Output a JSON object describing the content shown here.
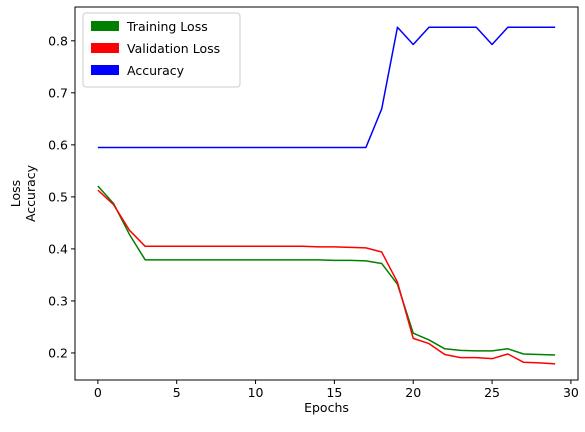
{
  "chart_data": {
    "type": "line",
    "title": "",
    "xlabel": "Epochs",
    "ylabel_lines": [
      "Loss",
      "Accuracy"
    ],
    "xlim": [
      -1.45,
      30.45
    ],
    "ylim": [
      0.148,
      0.865
    ],
    "xticks": [
      0,
      5,
      10,
      15,
      20,
      25,
      30
    ],
    "yticks": [
      0.2,
      0.3,
      0.4,
      0.5,
      0.6,
      0.7,
      0.8
    ],
    "grid": false,
    "legend_position": "top-left",
    "x": [
      0,
      1,
      2,
      3,
      4,
      5,
      6,
      7,
      8,
      9,
      10,
      11,
      12,
      13,
      14,
      15,
      16,
      17,
      18,
      19,
      20,
      21,
      22,
      23,
      24,
      25,
      26,
      27,
      28,
      29
    ],
    "series": [
      {
        "name": "Training Loss",
        "color": "#008000",
        "values": [
          0.521,
          0.487,
          0.428,
          0.379,
          0.379,
          0.379,
          0.379,
          0.379,
          0.379,
          0.379,
          0.379,
          0.379,
          0.379,
          0.379,
          0.379,
          0.378,
          0.378,
          0.377,
          0.372,
          0.332,
          0.238,
          0.225,
          0.208,
          0.205,
          0.204,
          0.204,
          0.208,
          0.198,
          0.197,
          0.196
        ]
      },
      {
        "name": "Validation Loss",
        "color": "#ff0000",
        "values": [
          0.513,
          0.485,
          0.436,
          0.405,
          0.405,
          0.405,
          0.405,
          0.405,
          0.405,
          0.405,
          0.405,
          0.405,
          0.405,
          0.405,
          0.404,
          0.404,
          0.403,
          0.402,
          0.394,
          0.336,
          0.228,
          0.218,
          0.197,
          0.191,
          0.191,
          0.189,
          0.198,
          0.182,
          0.181,
          0.179
        ]
      },
      {
        "name": "Accuracy",
        "color": "#0000ff",
        "values": [
          0.595,
          0.595,
          0.595,
          0.595,
          0.595,
          0.595,
          0.595,
          0.595,
          0.595,
          0.595,
          0.595,
          0.595,
          0.595,
          0.595,
          0.595,
          0.595,
          0.595,
          0.595,
          0.669,
          0.826,
          0.793,
          0.826,
          0.826,
          0.826,
          0.826,
          0.793,
          0.826,
          0.826,
          0.826,
          0.826
        ]
      }
    ]
  }
}
